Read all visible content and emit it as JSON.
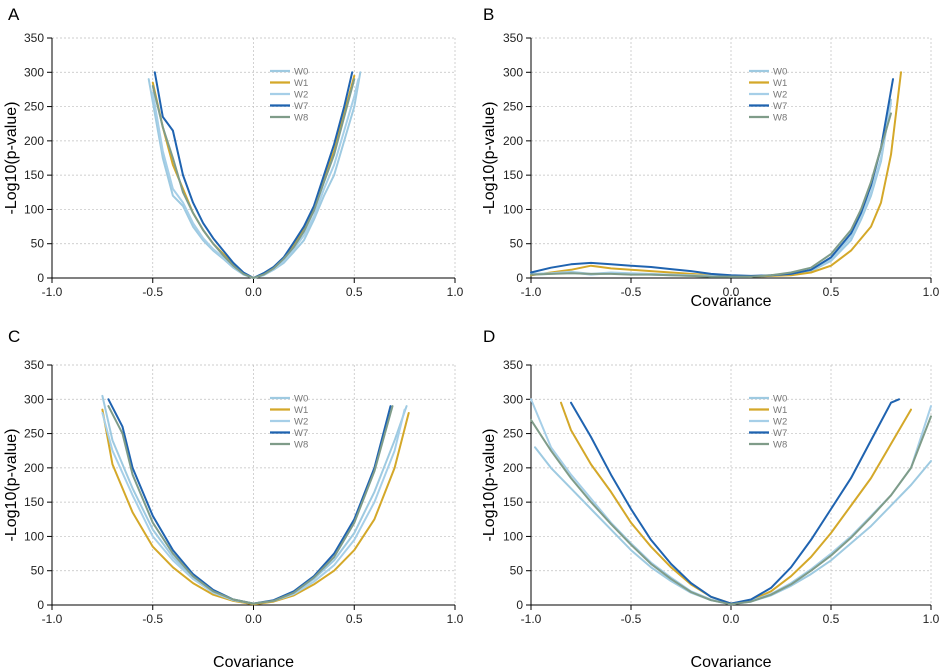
{
  "chart_data": [
    {
      "type": "line",
      "panel_label": "A",
      "xlabel": "",
      "ylabel": "-Log10(p-value)",
      "xlim": [
        -1.0,
        1.0
      ],
      "ylim": [
        0,
        350
      ],
      "xticks": [
        "-1.0",
        "-0.5",
        "0.0",
        "0.5",
        "1.0"
      ],
      "yticks": [
        "0",
        "50",
        "100",
        "150",
        "200",
        "250",
        "300",
        "350"
      ],
      "grid": true,
      "legend_position": "top-right",
      "series": [
        {
          "name": "W0",
          "color": "#9ecae1",
          "x": [
            -0.52,
            -0.45,
            -0.4,
            -0.35,
            -0.3,
            -0.25,
            -0.2,
            -0.15,
            -0.1,
            -0.05,
            0,
            0.05,
            0.1,
            0.15,
            0.2,
            0.25,
            0.3,
            0.35,
            0.4,
            0.45,
            0.5,
            0.53
          ],
          "y": [
            290,
            175,
            120,
            105,
            75,
            55,
            40,
            28,
            15,
            5,
            0,
            4,
            12,
            22,
            38,
            55,
            85,
            120,
            150,
            200,
            250,
            300
          ]
        },
        {
          "name": "W1",
          "color": "#d4a829",
          "x": [
            -0.5,
            -0.45,
            -0.4,
            -0.35,
            -0.3,
            -0.25,
            -0.2,
            -0.15,
            -0.1,
            -0.05,
            0,
            0.05,
            0.1,
            0.15,
            0.2,
            0.25,
            0.3,
            0.35,
            0.4,
            0.45,
            0.5
          ],
          "y": [
            285,
            220,
            165,
            130,
            95,
            70,
            50,
            35,
            20,
            7,
            0,
            6,
            14,
            28,
            48,
            70,
            100,
            145,
            185,
            240,
            295
          ]
        },
        {
          "name": "W2",
          "color": "#a6cfe8",
          "x": [
            -0.5,
            -0.45,
            -0.4,
            -0.35,
            -0.3,
            -0.25,
            -0.2,
            -0.15,
            -0.1,
            -0.05,
            0,
            0.05,
            0.1,
            0.15,
            0.2,
            0.25,
            0.3,
            0.35,
            0.4,
            0.45,
            0.5,
            0.52
          ],
          "y": [
            270,
            185,
            130,
            110,
            80,
            58,
            42,
            30,
            17,
            6,
            0,
            5,
            13,
            25,
            42,
            62,
            90,
            130,
            165,
            215,
            265,
            290
          ]
        },
        {
          "name": "W7",
          "color": "#1f63b0",
          "x": [
            -0.49,
            -0.45,
            -0.4,
            -0.35,
            -0.3,
            -0.25,
            -0.2,
            -0.15,
            -0.1,
            -0.05,
            0,
            0.05,
            0.1,
            0.15,
            0.2,
            0.25,
            0.3,
            0.35,
            0.4,
            0.45,
            0.49
          ],
          "y": [
            300,
            235,
            215,
            150,
            110,
            80,
            58,
            40,
            22,
            8,
            0,
            7,
            16,
            30,
            52,
            75,
            105,
            150,
            195,
            250,
            300
          ]
        },
        {
          "name": "W8",
          "color": "#7f9c89",
          "x": [
            -0.5,
            -0.45,
            -0.4,
            -0.35,
            -0.3,
            -0.25,
            -0.2,
            -0.15,
            -0.1,
            -0.05,
            0,
            0.05,
            0.1,
            0.15,
            0.2,
            0.25,
            0.3,
            0.35,
            0.4,
            0.45,
            0.5
          ],
          "y": [
            280,
            220,
            175,
            125,
            95,
            70,
            50,
            33,
            18,
            6,
            0,
            5,
            14,
            28,
            45,
            68,
            98,
            140,
            180,
            235,
            290
          ]
        }
      ]
    },
    {
      "type": "line",
      "panel_label": "B",
      "xlabel": "Covariance",
      "ylabel": "-Log10(p-value)",
      "xlim": [
        -1.0,
        1.0
      ],
      "ylim": [
        0,
        350
      ],
      "xticks": [
        "-1.0",
        "-0.5",
        "0.0",
        "0.5",
        "1.0"
      ],
      "yticks": [
        "0",
        "50",
        "100",
        "150",
        "200",
        "250",
        "300",
        "350"
      ],
      "grid": true,
      "legend_position": "top-right",
      "series": [
        {
          "name": "W0",
          "color": "#9ecae1",
          "x": [
            -1.0,
            -0.9,
            -0.8,
            -0.7,
            -0.6,
            -0.5,
            -0.4,
            -0.3,
            -0.2,
            -0.1,
            0,
            0.1,
            0.2,
            0.3,
            0.4,
            0.5,
            0.6,
            0.65,
            0.7,
            0.75,
            0.8
          ],
          "y": [
            5,
            6,
            8,
            5,
            7,
            6,
            5,
            4,
            3,
            2,
            2,
            2,
            3,
            5,
            10,
            25,
            55,
            85,
            120,
            170,
            260
          ]
        },
        {
          "name": "W1",
          "color": "#d4a829",
          "x": [
            -1.0,
            -0.9,
            -0.8,
            -0.7,
            -0.6,
            -0.5,
            -0.4,
            -0.3,
            -0.2,
            -0.1,
            0,
            0.1,
            0.2,
            0.3,
            0.4,
            0.5,
            0.6,
            0.7,
            0.75,
            0.8,
            0.85
          ],
          "y": [
            4,
            8,
            12,
            18,
            14,
            12,
            10,
            8,
            6,
            4,
            3,
            2,
            3,
            4,
            8,
            18,
            40,
            75,
            110,
            180,
            300
          ]
        },
        {
          "name": "W2",
          "color": "#a6cfe8",
          "x": [
            -1.0,
            -0.9,
            -0.8,
            -0.7,
            -0.6,
            -0.5,
            -0.4,
            -0.3,
            -0.2,
            -0.1,
            0,
            0.1,
            0.2,
            0.3,
            0.4,
            0.5,
            0.6,
            0.65,
            0.7,
            0.75,
            0.8
          ],
          "y": [
            6,
            7,
            9,
            6,
            8,
            7,
            6,
            5,
            4,
            3,
            2,
            2,
            4,
            6,
            12,
            28,
            60,
            90,
            125,
            175,
            255
          ]
        },
        {
          "name": "W7",
          "color": "#1f63b0",
          "x": [
            -1.0,
            -0.9,
            -0.8,
            -0.7,
            -0.6,
            -0.5,
            -0.4,
            -0.3,
            -0.2,
            -0.1,
            0,
            0.1,
            0.2,
            0.3,
            0.4,
            0.5,
            0.6,
            0.65,
            0.7,
            0.75,
            0.81
          ],
          "y": [
            8,
            15,
            20,
            22,
            20,
            18,
            16,
            13,
            10,
            6,
            4,
            3,
            4,
            6,
            12,
            30,
            65,
            95,
            135,
            190,
            290
          ]
        },
        {
          "name": "W8",
          "color": "#7f9c89",
          "x": [
            -1.0,
            -0.9,
            -0.8,
            -0.7,
            -0.6,
            -0.5,
            -0.4,
            -0.3,
            -0.2,
            -0.1,
            0,
            0.1,
            0.2,
            0.3,
            0.4,
            0.5,
            0.6,
            0.65,
            0.7,
            0.75,
            0.8
          ],
          "y": [
            5,
            6,
            7,
            6,
            6,
            5,
            5,
            4,
            3,
            2,
            2,
            2,
            4,
            8,
            15,
            35,
            70,
            100,
            140,
            190,
            240
          ]
        }
      ]
    },
    {
      "type": "line",
      "panel_label": "C",
      "xlabel": "Covariance",
      "ylabel": "-Log10(p-value)",
      "xlim": [
        -1.0,
        1.0
      ],
      "ylim": [
        0,
        350
      ],
      "xticks": [
        "-1.0",
        "-0.5",
        "0.0",
        "0.5",
        "1.0"
      ],
      "yticks": [
        "0",
        "50",
        "100",
        "150",
        "200",
        "250",
        "300",
        "350"
      ],
      "grid": true,
      "legend_position": "top-right",
      "series": [
        {
          "name": "W0",
          "color": "#9ecae1",
          "x": [
            -0.75,
            -0.7,
            -0.6,
            -0.5,
            -0.4,
            -0.3,
            -0.2,
            -0.1,
            0,
            0.1,
            0.2,
            0.3,
            0.4,
            0.5,
            0.6,
            0.7,
            0.76
          ],
          "y": [
            305,
            240,
            170,
            110,
            70,
            40,
            20,
            8,
            2,
            6,
            18,
            38,
            65,
            105,
            165,
            240,
            290
          ]
        },
        {
          "name": "W1",
          "color": "#d4a829",
          "x": [
            -0.75,
            -0.7,
            -0.6,
            -0.5,
            -0.4,
            -0.3,
            -0.2,
            -0.1,
            0,
            0.1,
            0.2,
            0.3,
            0.4,
            0.5,
            0.6,
            0.7,
            0.77
          ],
          "y": [
            285,
            205,
            135,
            85,
            55,
            32,
            15,
            6,
            1,
            5,
            14,
            30,
            50,
            80,
            125,
            200,
            280
          ]
        },
        {
          "name": "W2",
          "color": "#a6cfe8",
          "x": [
            -0.75,
            -0.7,
            -0.6,
            -0.5,
            -0.4,
            -0.3,
            -0.2,
            -0.1,
            0,
            0.1,
            0.2,
            0.3,
            0.4,
            0.5,
            0.6,
            0.7,
            0.75
          ],
          "y": [
            280,
            225,
            160,
            100,
            65,
            38,
            18,
            7,
            2,
            6,
            16,
            34,
            58,
            95,
            150,
            225,
            285
          ]
        },
        {
          "name": "W7",
          "color": "#1f63b0",
          "x": [
            -0.72,
            -0.65,
            -0.6,
            -0.5,
            -0.4,
            -0.3,
            -0.2,
            -0.1,
            0,
            0.1,
            0.2,
            0.3,
            0.4,
            0.5,
            0.6,
            0.68
          ],
          "y": [
            300,
            260,
            200,
            130,
            80,
            45,
            22,
            8,
            2,
            7,
            20,
            42,
            75,
            125,
            200,
            290
          ]
        },
        {
          "name": "W8",
          "color": "#7f9c89",
          "x": [
            -0.72,
            -0.65,
            -0.6,
            -0.5,
            -0.4,
            -0.3,
            -0.2,
            -0.1,
            0,
            0.1,
            0.2,
            0.3,
            0.4,
            0.5,
            0.6,
            0.69
          ],
          "y": [
            290,
            250,
            190,
            120,
            75,
            42,
            20,
            8,
            2,
            6,
            18,
            40,
            70,
            120,
            195,
            290
          ]
        }
      ]
    },
    {
      "type": "line",
      "panel_label": "D",
      "xlabel": "Covariance",
      "ylabel": "-Log10(p-value)",
      "xlim": [
        -1.0,
        1.0
      ],
      "ylim": [
        0,
        350
      ],
      "xticks": [
        "-1.0",
        "-0.5",
        "0.0",
        "0.5",
        "1.0"
      ],
      "yticks": [
        "0",
        "50",
        "100",
        "150",
        "200",
        "250",
        "300",
        "350"
      ],
      "grid": true,
      "legend_position": "top-right",
      "series": [
        {
          "name": "W0",
          "color": "#9ecae1",
          "x": [
            -0.98,
            -0.9,
            -0.8,
            -0.7,
            -0.6,
            -0.5,
            -0.4,
            -0.3,
            -0.2,
            -0.1,
            0,
            0.1,
            0.2,
            0.3,
            0.4,
            0.5,
            0.6,
            0.7,
            0.8,
            0.9,
            1.0
          ],
          "y": [
            230,
            200,
            170,
            140,
            110,
            80,
            55,
            35,
            18,
            7,
            1,
            5,
            14,
            28,
            45,
            65,
            90,
            115,
            145,
            175,
            210
          ]
        },
        {
          "name": "W1",
          "color": "#d4a829",
          "x": [
            -0.85,
            -0.8,
            -0.7,
            -0.6,
            -0.5,
            -0.4,
            -0.3,
            -0.2,
            -0.1,
            0,
            0.1,
            0.2,
            0.3,
            0.4,
            0.5,
            0.6,
            0.7,
            0.8,
            0.9
          ],
          "y": [
            295,
            255,
            205,
            165,
            120,
            85,
            55,
            30,
            12,
            2,
            7,
            20,
            42,
            70,
            105,
            145,
            185,
            235,
            285
          ]
        },
        {
          "name": "W2",
          "color": "#a6cfe8",
          "x": [
            -1.0,
            -0.9,
            -0.8,
            -0.7,
            -0.6,
            -0.5,
            -0.4,
            -0.3,
            -0.2,
            -0.1,
            0,
            0.1,
            0.2,
            0.3,
            0.4,
            0.5,
            0.6,
            0.7,
            0.8,
            0.9,
            1.0
          ],
          "y": [
            300,
            230,
            190,
            155,
            120,
            90,
            62,
            40,
            20,
            8,
            1,
            6,
            16,
            32,
            52,
            75,
            100,
            130,
            160,
            200,
            290
          ]
        },
        {
          "name": "W7",
          "color": "#1f63b0",
          "x": [
            -0.8,
            -0.7,
            -0.6,
            -0.5,
            -0.4,
            -0.3,
            -0.2,
            -0.1,
            0,
            0.1,
            0.2,
            0.3,
            0.4,
            0.5,
            0.6,
            0.7,
            0.8,
            0.84
          ],
          "y": [
            295,
            245,
            190,
            140,
            95,
            60,
            32,
            12,
            2,
            8,
            25,
            55,
            95,
            140,
            185,
            240,
            295,
            300
          ]
        },
        {
          "name": "W8",
          "color": "#7f9c89",
          "x": [
            -1.0,
            -0.9,
            -0.8,
            -0.7,
            -0.6,
            -0.5,
            -0.4,
            -0.3,
            -0.2,
            -0.1,
            0,
            0.1,
            0.2,
            0.3,
            0.4,
            0.5,
            0.6,
            0.7,
            0.8,
            0.9,
            1.0
          ],
          "y": [
            270,
            225,
            185,
            150,
            118,
            88,
            60,
            38,
            19,
            7,
            1,
            5,
            15,
            30,
            50,
            72,
            98,
            128,
            160,
            200,
            275
          ]
        }
      ]
    }
  ]
}
